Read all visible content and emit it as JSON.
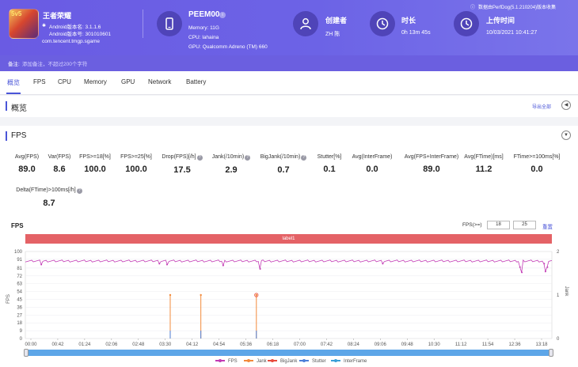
{
  "header": {
    "app_name": "王者荣耀",
    "icon_badge": "5v5",
    "android_version": "Android版本名: 3.1.1.6",
    "android_code": "Android版本号: 301010601",
    "package": "com.tencent.tmgp.sgame",
    "device_name": "PEEM00",
    "memory": "Memory: 11G",
    "cpu": "CPU: lahaina",
    "gpu": "GPU: Qualcomm Adreno (TM) 660",
    "creator_title": "创建者",
    "creator_value": "ZH 陈",
    "duration_title": "时长",
    "duration_value": "0h 13m 45s",
    "upload_title": "上传时间",
    "upload_value": "10/03/2021 10:41:27",
    "perfdog_note": "数据由PerfDog(5.1.210204)版本收集",
    "note_label": "备注:",
    "note_placeholder": "添加备注，不超过200个字符"
  },
  "tabs": [
    {
      "label": "概览",
      "active": true
    },
    {
      "label": "FPS"
    },
    {
      "label": "CPU"
    },
    {
      "label": "Memory"
    },
    {
      "label": "GPU"
    },
    {
      "label": "Network"
    },
    {
      "label": "Battery"
    }
  ],
  "overview": {
    "title": "概览",
    "export_label": "导出全部"
  },
  "fps_section": {
    "title": "FPS",
    "stats": [
      {
        "label": "Avg(FPS)",
        "value": "89.0",
        "help": false
      },
      {
        "label": "Var(FPS)",
        "value": "8.6",
        "help": false
      },
      {
        "label": "FPS>=18[%]",
        "value": "100.0",
        "help": false
      },
      {
        "label": "FPS>=25[%]",
        "value": "100.0",
        "help": false
      },
      {
        "label": "Drop(FPS)[/h]",
        "value": "17.5",
        "help": true
      },
      {
        "label": "Jank(/10min)",
        "value": "2.9",
        "help": true
      },
      {
        "label": "BigJank(/10min)",
        "value": "0.7",
        "help": true
      },
      {
        "label": "Stutter[%]",
        "value": "0.1",
        "help": false
      },
      {
        "label": "Avg(InterFrame)",
        "value": "0.0",
        "help": false
      },
      {
        "label": "Avg(FPS+InterFrame)",
        "value": "89.0",
        "help": false
      },
      {
        "label": "Avg(FTime)[ms]",
        "value": "11.2",
        "help": false
      },
      {
        "label": "FTime>=100ms[%]",
        "value": "0.0",
        "help": false
      },
      {
        "label": "Delta(FTime)>100ms[/h]",
        "value": "8.7",
        "help": true
      }
    ],
    "help_glyph": "?",
    "collapse_glyph": "▼",
    "overview_collapse_glyph": "◀"
  },
  "chart_controls": {
    "title": "FPS",
    "fps_ge_label": "FPS(>=)",
    "fps_threshold_1": "18",
    "fps_threshold_2": "25",
    "reset_label": "重置",
    "label_bar": "label1"
  },
  "chart_data": {
    "type": "line",
    "title": "FPS",
    "ylabel": "FPS",
    "y2label": "Jank",
    "ylim": [
      0,
      100
    ],
    "y2lim": [
      0,
      2
    ],
    "yticks": [
      0,
      9,
      18,
      27,
      36,
      45,
      54,
      63,
      72,
      81,
      91,
      100
    ],
    "y2ticks": [
      0,
      1,
      2
    ],
    "xticks": [
      "00:00",
      "00:42",
      "01:24",
      "02:06",
      "02:48",
      "03:30",
      "04:12",
      "04:54",
      "05:36",
      "06:18",
      "07:00",
      "07:42",
      "08:24",
      "09:06",
      "09:48",
      "10:30",
      "11:12",
      "11:54",
      "12:36",
      "13:18"
    ],
    "x_range_seconds": [
      0,
      825
    ],
    "series": [
      {
        "name": "FPS",
        "color": "#c23bb5",
        "baseline": 89,
        "dips": [
          [
            25,
            85
          ],
          [
            210,
            86
          ],
          [
            222,
            85
          ],
          [
            310,
            84
          ],
          [
            368,
            80
          ],
          [
            560,
            86
          ],
          [
            775,
            82
          ],
          [
            778,
            76
          ],
          [
            813,
            86
          ],
          [
            815,
            77
          ],
          [
            818,
            82
          ]
        ]
      },
      {
        "name": "Jank",
        "color": "#f28a3c",
        "events": [
          [
            227,
            1
          ],
          [
            275,
            1
          ],
          [
            362,
            1
          ]
        ]
      },
      {
        "name": "BigJank",
        "color": "#e84b3c",
        "events": [
          [
            362,
            1
          ]
        ]
      },
      {
        "name": "Stutter",
        "color": "#4c7fd8",
        "events": []
      },
      {
        "name": "InterFrame",
        "color": "#3aa0d8",
        "events": []
      }
    ],
    "grid": true,
    "legend_position": "bottom"
  }
}
